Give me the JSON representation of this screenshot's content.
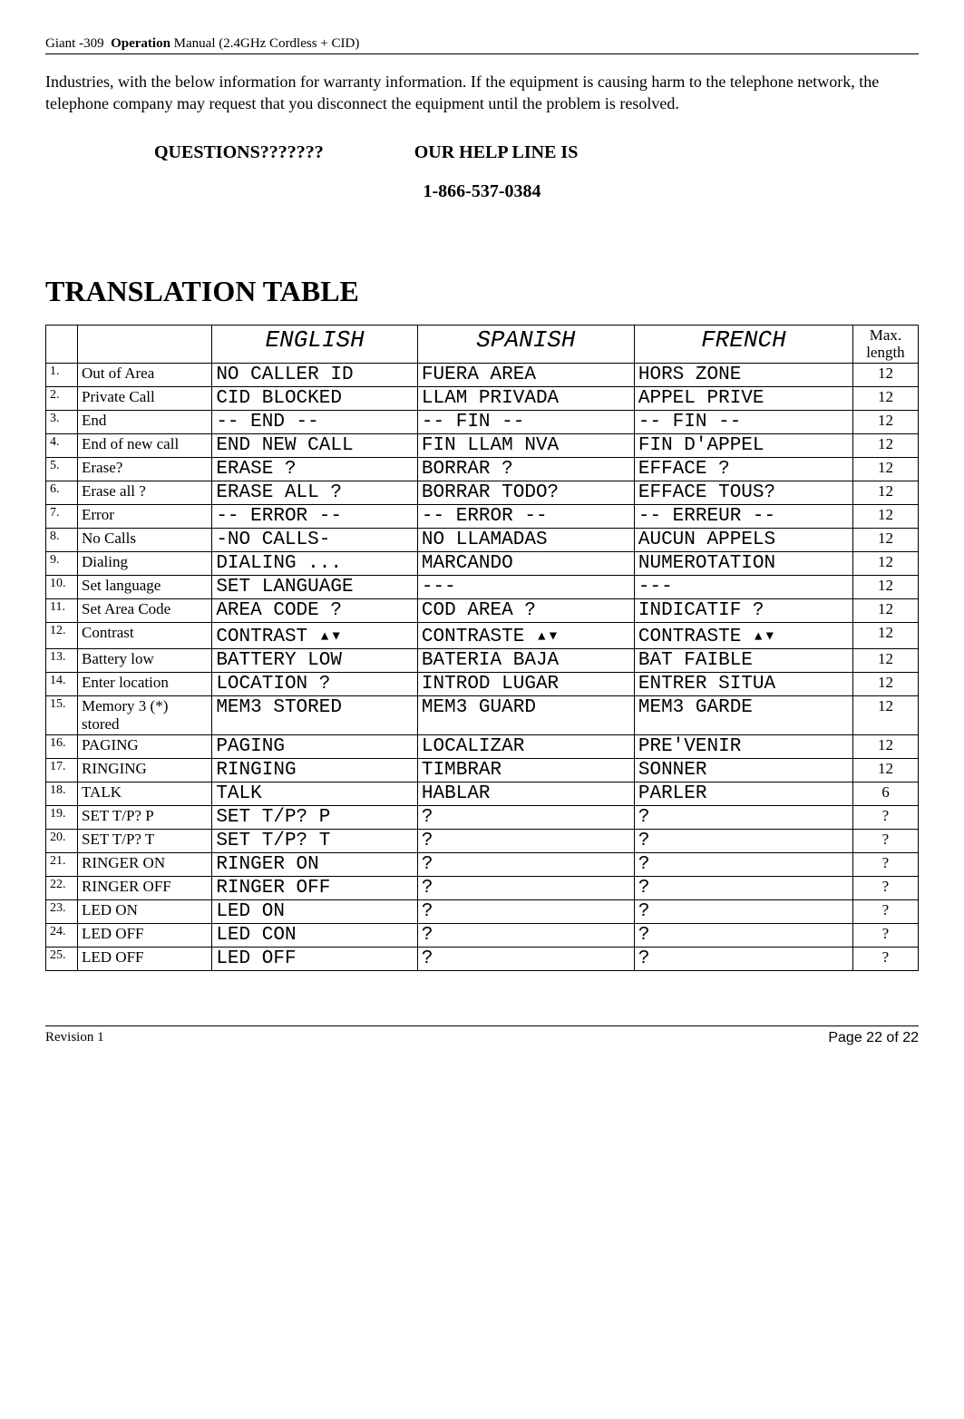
{
  "header": {
    "product": "Giant -309",
    "title_bold": "Operation",
    "title_rest": " Manual (2.4GHz Cordless + CID)"
  },
  "intro": "Industries, with the below information for warranty information. If the equipment is causing harm to the telephone network, the telephone company may request that you disconnect the equipment until the problem is resolved.",
  "questions": {
    "left": "QUESTIONS???????",
    "right": "OUR HELP LINE IS"
  },
  "phone": "1-866-537-0384",
  "section_title": "TRANSLATION TABLE",
  "columns": {
    "en": "ENGLISH",
    "es": "SPANISH",
    "fr": "FRENCH",
    "max1": "Max.",
    "max2": "length"
  },
  "rows": [
    {
      "n": "1.",
      "label": "Out of Area",
      "en": "NO CALLER ID",
      "es": "FUERA AREA",
      "fr": "HORS ZONE",
      "max": "12"
    },
    {
      "n": "2.",
      "label": "Private Call",
      "en": "CID BLOCKED",
      "es": "LLAM PRIVADA",
      "fr": "APPEL PRIVE",
      "max": "12"
    },
    {
      "n": "3.",
      "label": "End",
      "en": "-- END --",
      "es": "-- FIN --",
      "fr": "-- FIN --",
      "max": "12"
    },
    {
      "n": "4.",
      "label": "End of new call",
      "en": "END NEW CALL",
      "es": "FIN LLAM NVA",
      "fr": "FIN D'APPEL",
      "max": "12"
    },
    {
      "n": "5.",
      "label": "Erase?",
      "en": "ERASE ?",
      "es": "BORRAR ?",
      "fr": "EFFACE ?",
      "max": "12"
    },
    {
      "n": "6.",
      "label": "Erase all ?",
      "en": "ERASE ALL ?",
      "es": "BORRAR TODO?",
      "fr": "EFFACE TOUS?",
      "max": "12"
    },
    {
      "n": "7.",
      "label": "Error",
      "en": "-- ERROR --",
      "es": "-- ERROR --",
      "fr": "-- ERREUR --",
      "max": "12"
    },
    {
      "n": "8.",
      "label": "No Calls",
      "en": "-NO CALLS-",
      "es": "NO LLAMADAS",
      "fr": "AUCUN APPELS",
      "max": "12"
    },
    {
      "n": "9.",
      "label": "Dialing",
      "en": "DIALING ...",
      "es": "MARCANDO",
      "fr": "NUMEROTATION",
      "max": "12"
    },
    {
      "n": "10.",
      "label": "Set language",
      "en": "SET LANGUAGE",
      "es": "---",
      "fr": "---",
      "max": "12"
    },
    {
      "n": "11.",
      "label": "Set Area Code",
      "en": "AREA CODE ?",
      "es": "COD AREA ?",
      "fr": "INDICATIF ?",
      "max": "12"
    },
    {
      "n": "12.",
      "label": "Contrast",
      "en": "CONTRAST ▴▾",
      "es": "CONTRASTE ▴▾",
      "fr": "CONTRASTE ▴▾",
      "max": "12"
    },
    {
      "n": "13.",
      "label": "Battery low",
      "en": "BATTERY LOW",
      "es": "BATERIA BAJA",
      "fr": "BAT FAIBLE",
      "max": "12"
    },
    {
      "n": "14.",
      "label": "Enter location",
      "en": "LOCATION ?",
      "es": "INTROD LUGAR",
      "fr": "ENTRER SITUA",
      "max": "12"
    },
    {
      "n": "15.",
      "label": "Memory 3 (*) stored",
      "en": "MEM3 STORED",
      "es": "MEM3 GUARD",
      "fr": "MEM3 GARDE",
      "max": "12"
    },
    {
      "n": "16.",
      "label": "PAGING",
      "en": "PAGING",
      "es": "LOCALIZAR",
      "fr": "PRE'VENIR",
      "max": "12"
    },
    {
      "n": "17.",
      "label": "RINGING",
      "en": "RINGING",
      "es": "TIMBRAR",
      "fr": "SONNER",
      "max": "12"
    },
    {
      "n": "18.",
      "label": "TALK",
      "en": "TALK",
      "es": "HABLAR",
      "fr": "PARLER",
      "max": "6"
    },
    {
      "n": "19.",
      "label": "SET T/P? P",
      "en": "SET T/P? P",
      "es": "?",
      "fr": "?",
      "max": "?"
    },
    {
      "n": "20.",
      "label": "SET T/P? T",
      "en": "SET T/P? T",
      "es": "?",
      "fr": "?",
      "max": "?"
    },
    {
      "n": "21.",
      "label": "RINGER ON",
      "en": "RINGER ON",
      "es": "?",
      "fr": "?",
      "max": "?"
    },
    {
      "n": "22.",
      "label": "RINGER OFF",
      "en": "RINGER OFF",
      "es": "?",
      "fr": "?",
      "max": "?"
    },
    {
      "n": "23.",
      "label": "LED ON",
      "en": "LED ON",
      "es": "?",
      "fr": "?",
      "max": "?"
    },
    {
      "n": "24.",
      "label": "LED OFF",
      "en": "LED CON",
      "es": "?",
      "fr": "?",
      "max": "?"
    },
    {
      "n": "25.",
      "label": "LED OFF",
      "en": "LED OFF",
      "es": "?",
      "fr": "?",
      "max": "?"
    }
  ],
  "footer": {
    "left": "Revision 1",
    "right": "Page 22 of 22"
  }
}
